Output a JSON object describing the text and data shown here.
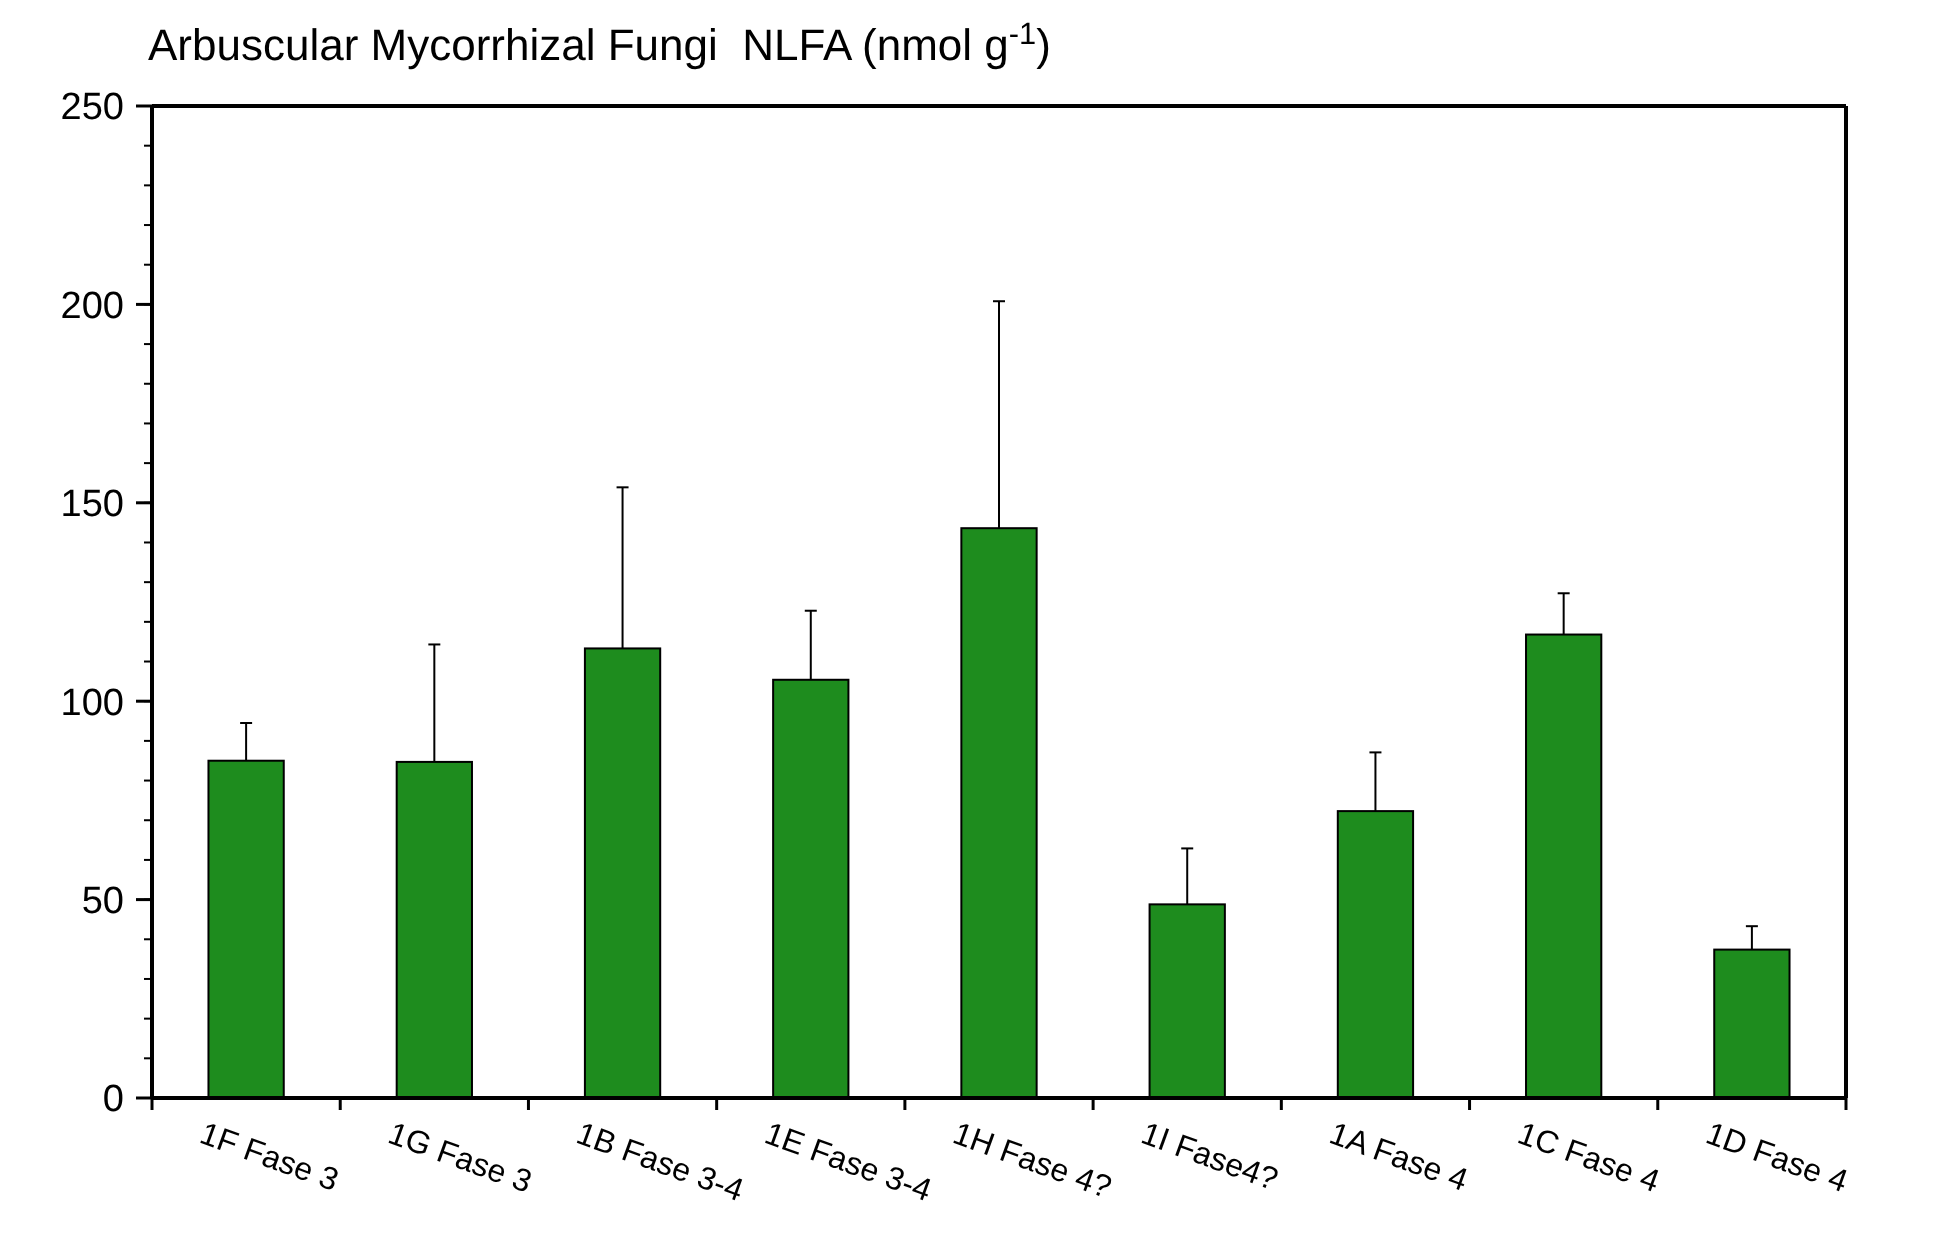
{
  "chart_data": {
    "type": "bar",
    "title": "Arbuscular Mycorrhizal Fungi  NLFA (nmol g$^{-1}$)",
    "categories": [
      "1F Fase 3",
      "1G Fase 3",
      "1B Fase 3-4",
      "1E Fase 3-4",
      "1H Fase 4?",
      "1I Fase4?",
      "1A Fase 4",
      "1C Fase 4",
      "1D Fase 4"
    ],
    "values": [
      85,
      84.7,
      113.3,
      105.4,
      143.6,
      48.8,
      72.3,
      116.8,
      37.4
    ],
    "errors": [
      [
        85,
        94.5
      ],
      [
        84.7,
        114.3
      ],
      [
        113.3,
        153.9
      ],
      [
        105.4,
        122.8
      ],
      [
        143.6,
        200.8
      ],
      [
        48.8,
        62.9
      ],
      [
        72.3,
        87.1
      ],
      [
        116.8,
        127.2
      ],
      [
        37.4,
        43.3
      ]
    ],
    "color": "#1e8c1e",
    "ylim": [
      0,
      250
    ],
    "yticks": [
      0,
      50,
      100,
      150,
      200,
      250
    ],
    "grid": false
  }
}
